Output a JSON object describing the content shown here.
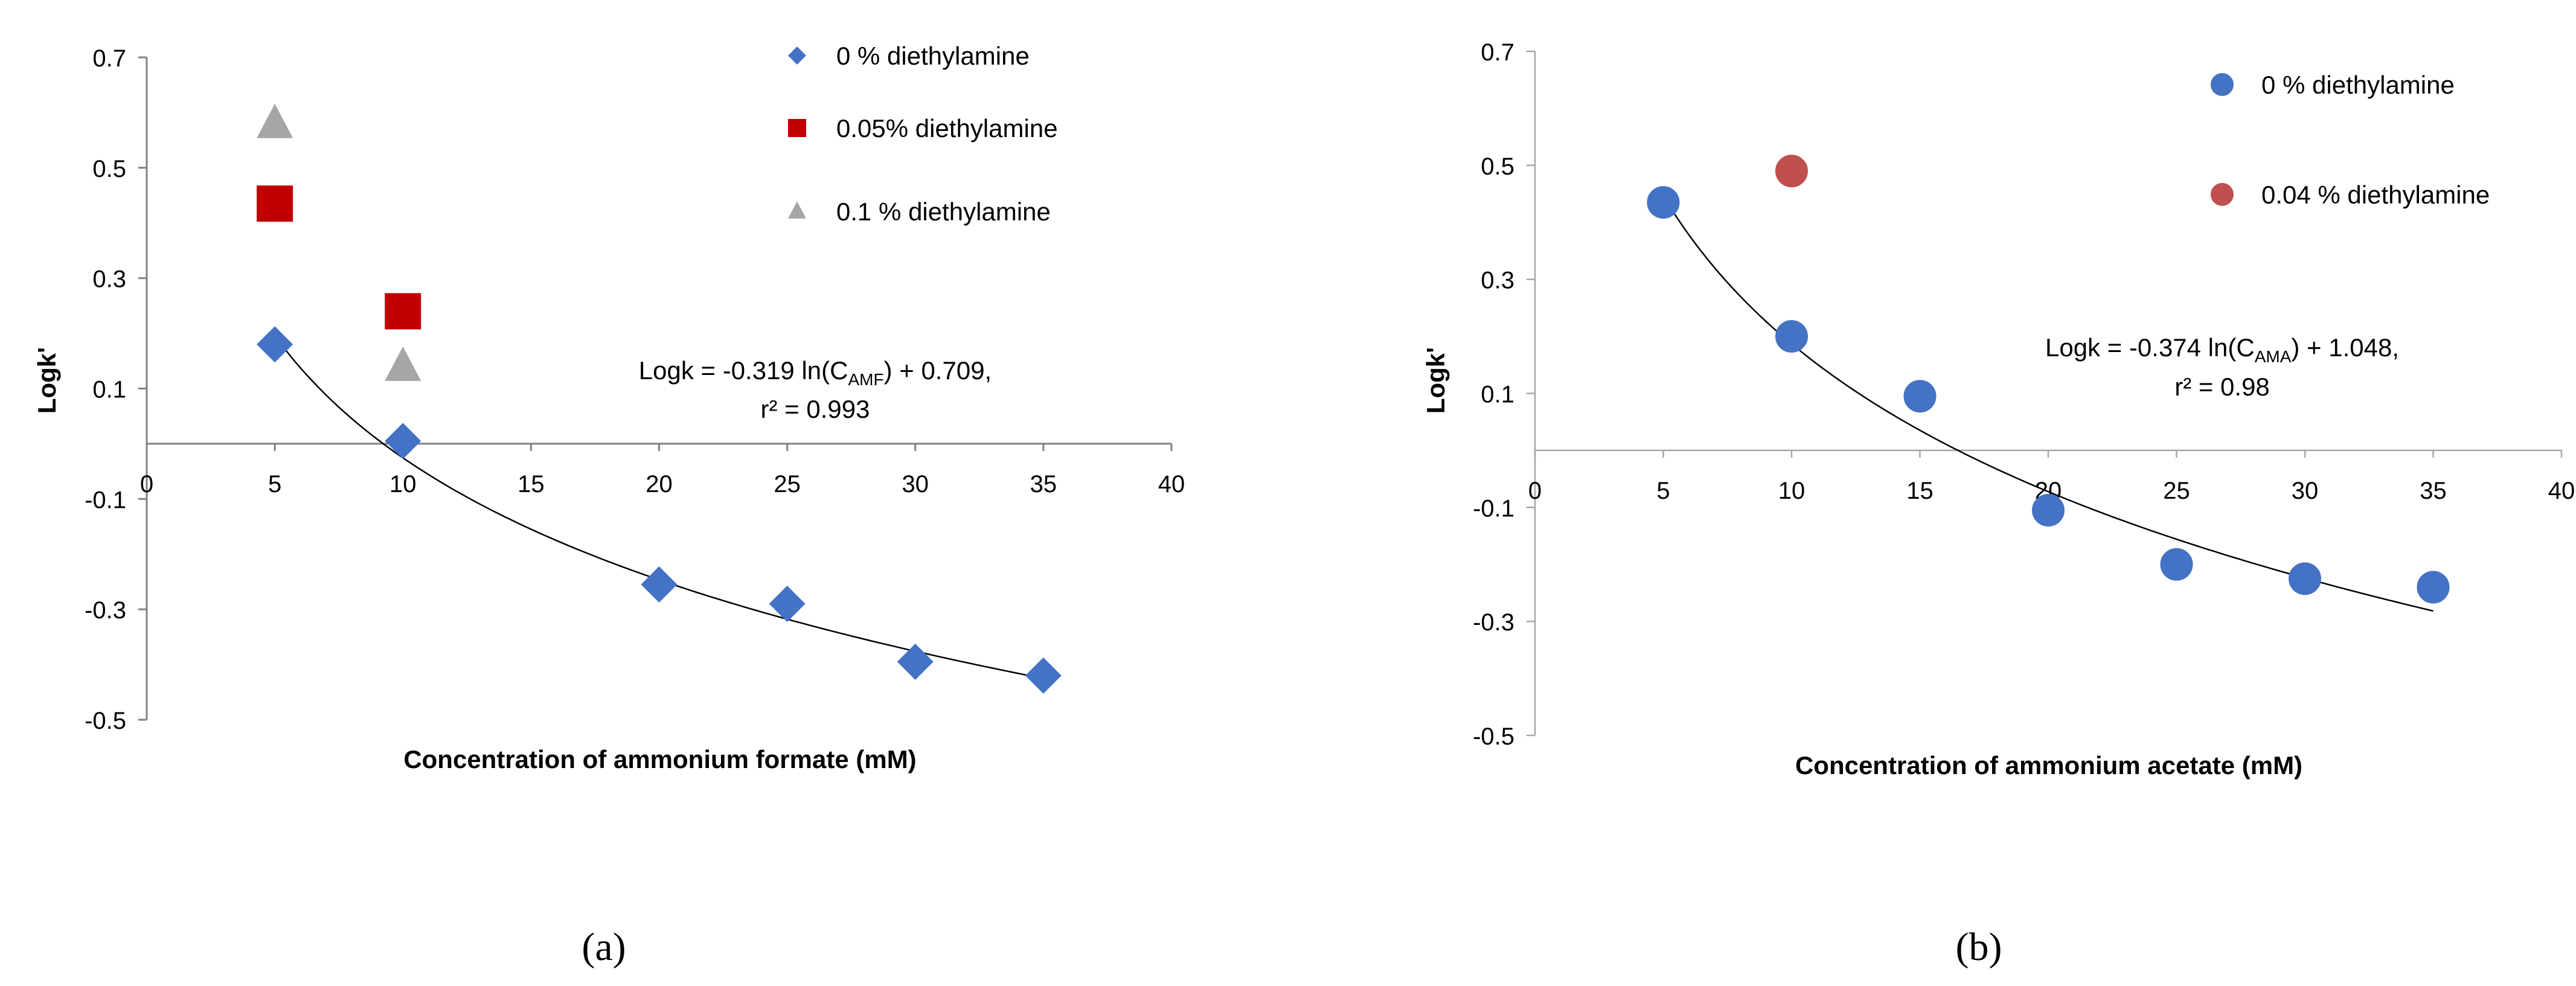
{
  "chart_data": [
    {
      "panel": "a",
      "type": "scatter",
      "caption": "(a)",
      "xlabel": "Concentration of ammonium formate (mM)",
      "ylabel": "Logk'",
      "xlim": [
        0,
        40
      ],
      "ylim": [
        -0.5,
        0.7
      ],
      "x_ticks": [
        "0",
        "5",
        "10",
        "15",
        "20",
        "25",
        "30",
        "35",
        "40"
      ],
      "x_tick_values": [
        0,
        5,
        10,
        15,
        20,
        25,
        30,
        35,
        40
      ],
      "y_ticks": [
        "-0.5",
        "-0.3",
        "-0.1",
        "0.1",
        "0.3",
        "0.5",
        "0.7"
      ],
      "y_tick_values": [
        -0.5,
        -0.3,
        -0.1,
        0.1,
        0.3,
        0.5,
        0.7
      ],
      "grid": false,
      "legend_position": "top-right",
      "series": [
        {
          "name": "0 % diethylamine",
          "marker": "diamond",
          "color": "#4472C4",
          "x": [
            5,
            10,
            20,
            25,
            30,
            35
          ],
          "y": [
            0.18,
            0.005,
            -0.255,
            -0.29,
            -0.395,
            -0.42
          ]
        },
        {
          "name": "0.05% diethylamine",
          "marker": "square",
          "color": "#C00000",
          "x": [
            5,
            10
          ],
          "y": [
            0.435,
            0.24
          ]
        },
        {
          "name": "0.1 % diethylamine",
          "marker": "triangle",
          "color": "#A6A6A6",
          "x": [
            5,
            10
          ],
          "y": [
            0.58,
            0.14
          ]
        }
      ],
      "trendline": {
        "a": -0.319,
        "b": 0.709,
        "x_from": 5,
        "x_to": 35
      },
      "equation": {
        "prefix": "Logk = -0.319 ln(C",
        "subscript": "AMF",
        "suffix": ") + 0.709,",
        "r2_line": "r² = 0.993"
      }
    },
    {
      "panel": "b",
      "type": "scatter",
      "caption": "(b)",
      "xlabel": "Concentration of ammonium acetate (mM)",
      "ylabel": "Logk'",
      "xlim": [
        0,
        40
      ],
      "ylim": [
        -0.5,
        0.7
      ],
      "x_ticks": [
        "0",
        "5",
        "10",
        "15",
        "20",
        "25",
        "30",
        "35",
        "40"
      ],
      "x_tick_values": [
        0,
        5,
        10,
        15,
        20,
        25,
        30,
        35,
        40
      ],
      "y_ticks": [
        "-0.5",
        "-0.3",
        "-0.1",
        "0.1",
        "0.3",
        "0.5",
        "0.7"
      ],
      "y_tick_values": [
        -0.5,
        -0.3,
        -0.1,
        0.1,
        0.3,
        0.5,
        0.7
      ],
      "grid": false,
      "legend_position": "top-right",
      "series": [
        {
          "name": "0 % diethylamine",
          "marker": "circle",
          "color": "#4472C4",
          "x": [
            5,
            10,
            15,
            20,
            25,
            30,
            35
          ],
          "y": [
            0.435,
            0.2,
            0.095,
            -0.105,
            -0.2,
            -0.225,
            -0.24
          ]
        },
        {
          "name": "0.04 % diethylamine",
          "marker": "circle",
          "color": "#C0504D",
          "x": [
            10
          ],
          "y": [
            0.49
          ]
        }
      ],
      "trendline": {
        "a": -0.374,
        "b": 1.048,
        "x_from": 5,
        "x_to": 35
      },
      "equation": {
        "prefix": "Logk = -0.374 ln(C",
        "subscript": "AMA",
        "suffix": ") + 1.048,",
        "r2_line": "r² = 0.98"
      }
    }
  ]
}
